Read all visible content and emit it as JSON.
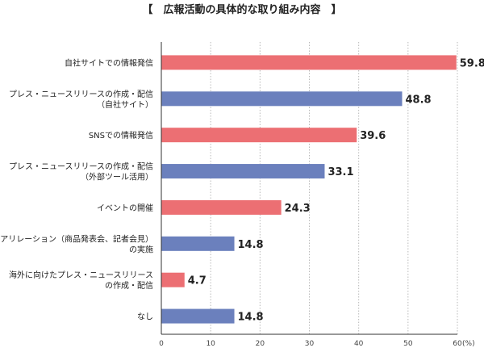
{
  "chart_data": {
    "type": "bar",
    "orientation": "horizontal",
    "title": "【　広報活動の具体的な取り組み内容　】",
    "unit": "(%)",
    "xlim": [
      0,
      60
    ],
    "ticks": [
      "0",
      "10",
      "20",
      "30",
      "40",
      "50",
      "60"
    ],
    "grid": true,
    "colors": {
      "pink": "#ec6f73",
      "blue": "#6b80bd"
    },
    "categories": [
      {
        "lines": [
          "自社サイトでの情報発信"
        ],
        "value": 59.8,
        "label": "59.8",
        "color": "pink"
      },
      {
        "lines": [
          "プレス・ニュースリリースの作成・配信",
          "（自社サイト）"
        ],
        "value": 48.8,
        "label": "48.8",
        "color": "blue"
      },
      {
        "lines": [
          "SNSでの情報発信"
        ],
        "value": 39.6,
        "label": "39.6",
        "color": "pink"
      },
      {
        "lines": [
          "プレス・ニュースリリースの作成・配信",
          "（外部ツール活用）"
        ],
        "value": 33.1,
        "label": "33.1",
        "color": "blue"
      },
      {
        "lines": [
          "イベントの開催"
        ],
        "value": 24.3,
        "label": "24.3",
        "color": "pink"
      },
      {
        "lines": [
          "メディアリレーション（商品発表会、記者会見）",
          "の実施"
        ],
        "value": 14.8,
        "label": "14.8",
        "color": "blue"
      },
      {
        "lines": [
          "海外に向けたプレス・ニュースリリース",
          "の作成・配信"
        ],
        "value": 4.7,
        "label": "4.7",
        "color": "pink"
      },
      {
        "lines": [
          "なし"
        ],
        "value": 14.8,
        "label": "14.8",
        "color": "blue"
      }
    ]
  }
}
